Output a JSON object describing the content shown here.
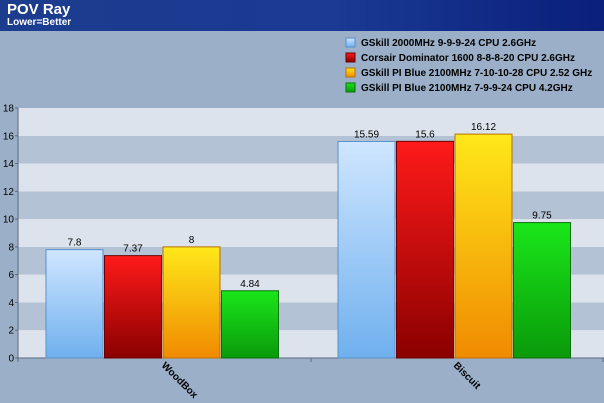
{
  "header": {
    "title": "POV Ray",
    "subtitle": "Lower=Better"
  },
  "chart_data": {
    "type": "bar",
    "categories": [
      "WoodBox",
      "Biscuit"
    ],
    "series": [
      {
        "name": "GSkill 2000MHz 9-9-9-24 CPU 2.6GHz",
        "values": [
          7.8,
          15.59
        ],
        "color_top": "#cfe6ff",
        "color_bottom": "#6fb0ee",
        "stroke": "#5b8fc8"
      },
      {
        "name": "Corsair Dominator 1600 8-8-8-20 CPU 2.6GHz",
        "values": [
          7.37,
          15.6
        ],
        "color_top": "#ff1a1a",
        "color_bottom": "#8a0000",
        "stroke": "#6a0000"
      },
      {
        "name": "GSkill PI Blue 2100MHz 7-10-10-28 CPU 2.52 GHz",
        "values": [
          8,
          16.12
        ],
        "color_top": "#ffe81a",
        "color_bottom": "#f08a00",
        "stroke": "#b87000"
      },
      {
        "name": "GSkill PI Blue 2100MHz 7-9-9-24 CPU 4.2GHz",
        "values": [
          4.84,
          9.75
        ],
        "color_top": "#1ae61a",
        "color_bottom": "#0a9a0a",
        "stroke": "#077007"
      }
    ],
    "data_labels": [
      [
        "7.8",
        "15.59"
      ],
      [
        "7.37",
        "15.6"
      ],
      [
        "8",
        "16.12"
      ],
      [
        "4.84",
        "9.75"
      ]
    ],
    "y_ticks": [
      "0",
      "2",
      "4",
      "6",
      "8",
      "10",
      "12",
      "14",
      "16",
      "18"
    ],
    "ylim": [
      0,
      18
    ],
    "grid": true,
    "legend_position": "top-right",
    "xlabel": "",
    "ylabel": ""
  }
}
